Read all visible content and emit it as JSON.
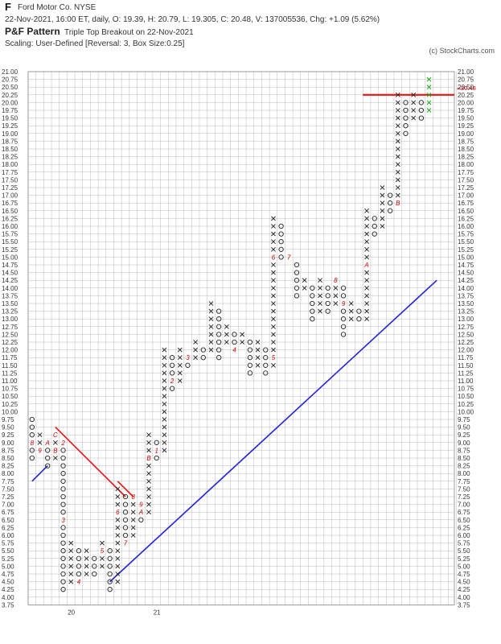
{
  "header": {
    "symbol": "F",
    "name": "Ford Motor Co.  NYSE",
    "quote": "22-Nov-2021, 16:00 ET, daily, O: 19.39, H: 20.79, L: 19.305, C: 20.48, V: 137005536, Chg: +1.09 (5.62%)",
    "pattern_label": "P&F Pattern",
    "pattern_desc": "Triple Top Breakout on 22-Nov-2021",
    "scaling": "Scaling: User-Defined [Reversal: 3, Box Size:0.25]",
    "copyright": "(c) StockCharts.com"
  },
  "colors": {
    "x_mark": "#222222",
    "o_mark": "#222222",
    "month_marker": "#cc0000",
    "current_column": "#00aa00",
    "trend_line": "#2222dd",
    "resistance": "#ee1111",
    "grid": "#bbbbbb",
    "price_tag": "#cc0000"
  },
  "chart_data": {
    "type": "point-and-figure",
    "box_size": 0.25,
    "reversal": 3,
    "y_range": [
      3.75,
      21.0
    ],
    "grid": true,
    "y_ticks": [
      "21.00",
      "20.75",
      "20.50",
      "20.25",
      "20.00",
      "19.75",
      "19.50",
      "19.25",
      "19.00",
      "18.75",
      "18.50",
      "18.25",
      "18.00",
      "17.75",
      "17.50",
      "17.25",
      "17.00",
      "16.75",
      "16.50",
      "16.25",
      "16.00",
      "15.75",
      "15.50",
      "15.25",
      "15.00",
      "14.75",
      "14.50",
      "14.25",
      "14.00",
      "13.75",
      "13.50",
      "13.25",
      "13.00",
      "12.75",
      "12.50",
      "12.25",
      "12.00",
      "11.75",
      "11.50",
      "11.25",
      "11.00",
      "10.75",
      "10.50",
      "10.25",
      "10.00",
      "9.75",
      "9.50",
      "9.25",
      "9.00",
      "8.75",
      "8.50",
      "8.25",
      "8.00",
      "7.75",
      "7.50",
      "7.25",
      "7.00",
      "6.75",
      "6.50",
      "6.25",
      "6.00",
      "5.75",
      "5.50",
      "5.25",
      "5.00",
      "4.75",
      "4.50",
      "4.25",
      "4.00",
      "3.75"
    ],
    "x_labels": [
      {
        "label": "20",
        "column": 5
      },
      {
        "label": "21",
        "column": 16
      }
    ],
    "current_price": "20.48",
    "columns": [
      {
        "type": "O",
        "high": 9.75,
        "low": 8.5,
        "markers": [
          {
            "price": 9.0,
            "text": "8"
          }
        ]
      },
      {
        "type": "X",
        "high": 9.25,
        "low": 8.75,
        "markers": [
          {
            "price": 8.75,
            "text": "9"
          }
        ]
      },
      {
        "type": "O",
        "high": 9.0,
        "low": 8.25,
        "markers": [
          {
            "price": 9.0,
            "text": "A"
          }
        ]
      },
      {
        "type": "X",
        "high": 9.25,
        "low": 8.5,
        "markers": [
          {
            "price": 9.25,
            "text": "C"
          },
          {
            "price": 8.75,
            "text": "B"
          }
        ]
      },
      {
        "type": "O",
        "high": 9.0,
        "low": 4.25,
        "markers": [
          {
            "price": 9.0,
            "text": "2"
          },
          {
            "price": 6.5,
            "text": "3"
          }
        ]
      },
      {
        "type": "X",
        "high": 5.75,
        "low": 4.5,
        "markers": []
      },
      {
        "type": "O",
        "high": 5.5,
        "low": 4.5,
        "markers": [
          {
            "price": 4.5,
            "text": "4"
          }
        ]
      },
      {
        "type": "X",
        "high": 5.5,
        "low": 4.75,
        "markers": []
      },
      {
        "type": "O",
        "high": 5.25,
        "low": 4.75,
        "markers": []
      },
      {
        "type": "X",
        "high": 5.75,
        "low": 5.0,
        "markers": [
          {
            "price": 5.5,
            "text": "5"
          }
        ]
      },
      {
        "type": "O",
        "high": 5.5,
        "low": 4.25,
        "markers": []
      },
      {
        "type": "X",
        "high": 7.5,
        "low": 4.5,
        "markers": [
          {
            "price": 6.75,
            "text": "6"
          }
        ]
      },
      {
        "type": "O",
        "high": 7.25,
        "low": 5.75,
        "markers": [
          {
            "price": 5.75,
            "text": "7"
          }
        ]
      },
      {
        "type": "X",
        "high": 7.25,
        "low": 6.0,
        "markers": [
          {
            "price": 7.25,
            "text": "8"
          }
        ]
      },
      {
        "type": "O",
        "high": 7.0,
        "low": 6.5,
        "markers": [
          {
            "price": 7.0,
            "text": "9"
          },
          {
            "price": 6.75,
            "text": "A"
          }
        ]
      },
      {
        "type": "X",
        "high": 9.25,
        "low": 6.75,
        "markers": [
          {
            "price": 8.5,
            "text": "B"
          }
        ]
      },
      {
        "type": "O",
        "high": 9.0,
        "low": 8.5,
        "markers": [
          {
            "price": 8.75,
            "text": "1"
          }
        ]
      },
      {
        "type": "X",
        "high": 12.0,
        "low": 8.75,
        "markers": []
      },
      {
        "type": "O",
        "high": 11.75,
        "low": 10.75,
        "markers": [
          {
            "price": 11.0,
            "text": "2"
          }
        ]
      },
      {
        "type": "X",
        "high": 12.0,
        "low": 11.0,
        "markers": []
      },
      {
        "type": "O",
        "high": 11.75,
        "low": 11.5,
        "markers": [
          {
            "price": 11.75,
            "text": "3"
          }
        ]
      },
      {
        "type": "X",
        "high": 12.25,
        "low": 11.75,
        "markers": []
      },
      {
        "type": "O",
        "high": 12.0,
        "low": 11.75,
        "markers": []
      },
      {
        "type": "X",
        "high": 13.5,
        "low": 12.0,
        "markers": []
      },
      {
        "type": "O",
        "high": 13.25,
        "low": 11.75,
        "markers": []
      },
      {
        "type": "X",
        "high": 12.75,
        "low": 12.25,
        "markers": []
      },
      {
        "type": "O",
        "high": 12.5,
        "low": 12.0,
        "markers": [
          {
            "price": 12.0,
            "text": "4"
          }
        ]
      },
      {
        "type": "X",
        "high": 12.5,
        "low": 12.25,
        "markers": []
      },
      {
        "type": "O",
        "high": 12.25,
        "low": 11.25,
        "markers": []
      },
      {
        "type": "X",
        "high": 12.25,
        "low": 11.5,
        "markers": []
      },
      {
        "type": "O",
        "high": 12.0,
        "low": 11.25,
        "markers": []
      },
      {
        "type": "X",
        "high": 16.25,
        "low": 11.5,
        "markers": [
          {
            "price": 11.75,
            "text": "5"
          },
          {
            "price": 15.0,
            "text": "6"
          }
        ]
      },
      {
        "type": "O",
        "high": 16.0,
        "low": 15.0,
        "markers": []
      },
      {
        "type": "X",
        "high": 15.0,
        "low": 15.0,
        "markers": [
          {
            "price": 15.0,
            "text": "7"
          }
        ]
      },
      {
        "type": "O",
        "high": 14.75,
        "low": 13.75,
        "markers": []
      },
      {
        "type": "X",
        "high": 14.25,
        "low": 14.0,
        "markers": []
      },
      {
        "type": "O",
        "high": 14.0,
        "low": 13.0,
        "markers": []
      },
      {
        "type": "X",
        "high": 14.25,
        "low": 13.25,
        "markers": []
      },
      {
        "type": "O",
        "high": 14.0,
        "low": 13.25,
        "markers": []
      },
      {
        "type": "X",
        "high": 14.25,
        "low": 13.5,
        "markers": [
          {
            "price": 14.25,
            "text": "8"
          }
        ]
      },
      {
        "type": "O",
        "high": 14.0,
        "low": 12.5,
        "markers": [
          {
            "price": 13.5,
            "text": "9"
          }
        ]
      },
      {
        "type": "X",
        "high": 13.5,
        "low": 13.0,
        "markers": []
      },
      {
        "type": "O",
        "high": 13.25,
        "low": 13.0,
        "markers": []
      },
      {
        "type": "X",
        "high": 16.5,
        "low": 13.0,
        "markers": [
          {
            "price": 14.75,
            "text": "A"
          }
        ]
      },
      {
        "type": "O",
        "high": 16.25,
        "low": 15.75,
        "markers": []
      },
      {
        "type": "X",
        "high": 17.25,
        "low": 16.0,
        "markers": []
      },
      {
        "type": "O",
        "high": 17.0,
        "low": 16.5,
        "markers": []
      },
      {
        "type": "X",
        "high": 20.25,
        "low": 16.75,
        "markers": [
          {
            "price": 16.75,
            "text": "B"
          }
        ]
      },
      {
        "type": "O",
        "high": 20.0,
        "low": 19.0,
        "markers": []
      },
      {
        "type": "X",
        "high": 20.25,
        "low": 19.5,
        "markers": []
      },
      {
        "type": "O",
        "high": 20.0,
        "low": 19.5,
        "markers": []
      },
      {
        "type": "X",
        "high": 20.75,
        "low": 19.75,
        "current": true,
        "markers": []
      }
    ],
    "trend_lines": [
      {
        "kind": "support",
        "from": {
          "column": 0,
          "price": 7.75
        },
        "to": {
          "column": 2,
          "price": 8.25
        }
      },
      {
        "kind": "support",
        "from": {
          "column": 10,
          "price": 4.5
        },
        "to": {
          "column": 52,
          "price": 14.25
        }
      },
      {
        "kind": "resistance",
        "from": {
          "column": 3,
          "price": 9.5
        },
        "to": {
          "column": 12,
          "price": 7.25
        }
      },
      {
        "kind": "resistance",
        "from": {
          "column": 11,
          "price": 7.75
        },
        "to": {
          "column": 13,
          "price": 7.25
        }
      },
      {
        "kind": "breakout",
        "from": {
          "column": 43,
          "price": 20.25
        },
        "to": {
          "column": 56,
          "price": 20.25
        }
      }
    ]
  }
}
